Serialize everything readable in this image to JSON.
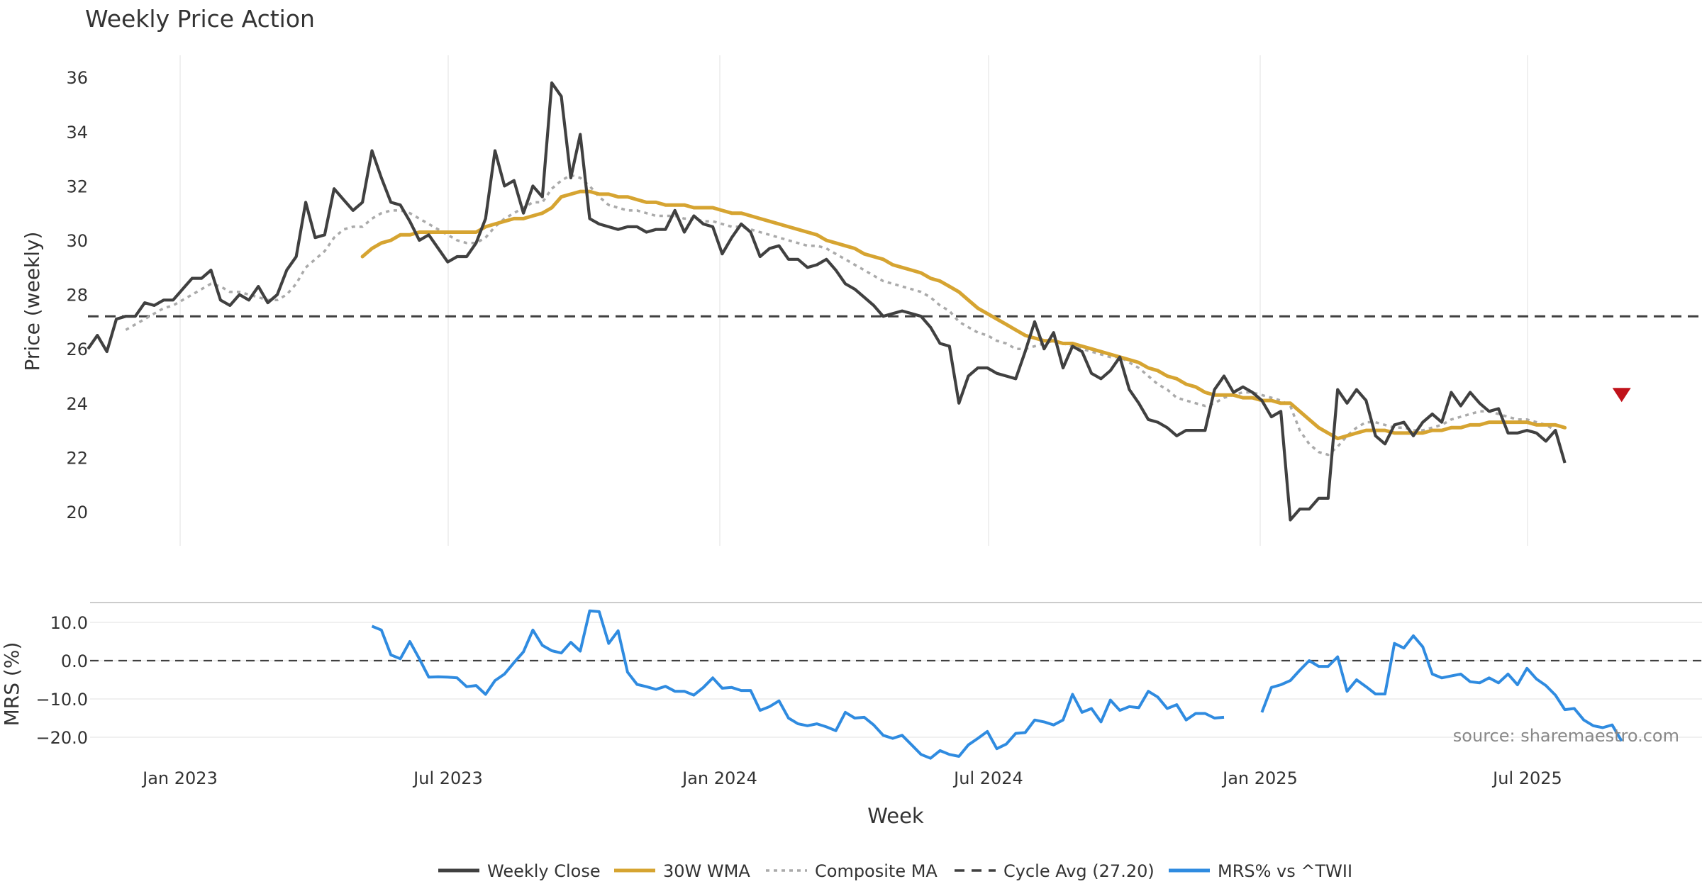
{
  "chart_data": [
    {
      "type": "line",
      "title": "Weekly Price Action",
      "xlabel": "Week",
      "ylabel": "Price (weekly)",
      "ylim": [
        18.8,
        36.8
      ],
      "yticks": [
        20,
        22,
        24,
        26,
        28,
        30,
        32,
        34,
        36
      ],
      "xticks": [
        "Jan 2023",
        "Jul 2023",
        "Jan 2024",
        "Jul 2024",
        "Jan 2025",
        "Jul 2025"
      ],
      "grid": true,
      "reference_line": {
        "label": "Cycle Avg (27.20)",
        "value": 27.2
      },
      "marker": {
        "type": "sell-signal",
        "x": 162,
        "y": 24.3
      },
      "series": [
        {
          "name": "Weekly Close",
          "color": "#404040",
          "values": [
            26.0,
            26.5,
            25.9,
            27.1,
            27.2,
            27.2,
            27.7,
            27.6,
            27.8,
            27.8,
            28.2,
            28.6,
            28.6,
            28.9,
            27.8,
            27.6,
            28.0,
            27.8,
            28.3,
            27.7,
            28.0,
            28.9,
            29.4,
            31.4,
            30.1,
            30.2,
            31.9,
            31.5,
            31.1,
            31.4,
            33.3,
            32.3,
            31.4,
            31.3,
            30.7,
            30.0,
            30.2,
            29.7,
            29.2,
            29.4,
            29.4,
            29.9,
            30.8,
            33.3,
            32.0,
            32.2,
            31.0,
            32.0,
            31.6,
            35.8,
            35.3,
            32.3,
            33.9,
            30.8,
            30.6,
            30.5,
            30.4,
            30.5,
            30.5,
            30.3,
            30.4,
            30.4,
            31.1,
            30.3,
            30.9,
            30.6,
            30.5,
            29.5,
            30.1,
            30.6,
            30.3,
            29.4,
            29.7,
            29.8,
            29.3,
            29.3,
            29.0,
            29.1,
            29.3,
            28.9,
            28.4,
            28.2,
            27.9,
            27.6,
            27.2,
            27.3,
            27.4,
            27.3,
            27.2,
            26.8,
            26.2,
            26.1,
            24.0,
            25.0,
            25.3,
            25.3,
            25.1,
            25.0,
            24.9,
            25.9,
            27.0,
            26.0,
            26.6,
            25.3,
            26.1,
            25.9,
            25.1,
            24.9,
            25.2,
            25.7,
            24.5,
            24.0,
            23.4,
            23.3,
            23.1,
            22.8,
            23.0,
            23.0,
            23.0,
            24.5,
            25.0,
            24.4,
            24.6,
            24.4,
            24.1,
            23.5,
            23.7,
            19.7,
            20.1,
            20.1,
            20.5,
            20.5,
            24.5,
            24.0,
            24.5,
            24.1,
            22.8,
            22.5,
            23.2,
            23.3,
            22.8,
            23.3,
            23.6,
            23.3,
            24.4,
            23.9,
            24.4,
            24.0,
            23.7,
            23.8,
            22.9,
            22.9,
            23.0,
            22.9,
            22.6,
            23.0,
            21.8
          ]
        },
        {
          "name": "30W WMA",
          "color": "#d6a431",
          "values": [
            null,
            null,
            null,
            null,
            null,
            null,
            null,
            null,
            null,
            null,
            null,
            null,
            null,
            null,
            null,
            null,
            null,
            null,
            null,
            null,
            null,
            null,
            null,
            null,
            null,
            null,
            null,
            null,
            null,
            29.4,
            29.7,
            29.9,
            30.0,
            30.2,
            30.2,
            30.3,
            30.3,
            30.3,
            30.3,
            30.3,
            30.3,
            30.3,
            30.5,
            30.6,
            30.7,
            30.8,
            30.8,
            30.9,
            31.0,
            31.2,
            31.6,
            31.7,
            31.8,
            31.8,
            31.7,
            31.7,
            31.6,
            31.6,
            31.5,
            31.4,
            31.4,
            31.3,
            31.3,
            31.3,
            31.2,
            31.2,
            31.2,
            31.1,
            31.0,
            31.0,
            30.9,
            30.8,
            30.7,
            30.6,
            30.5,
            30.4,
            30.3,
            30.2,
            30.0,
            29.9,
            29.8,
            29.7,
            29.5,
            29.4,
            29.3,
            29.1,
            29.0,
            28.9,
            28.8,
            28.6,
            28.5,
            28.3,
            28.1,
            27.8,
            27.5,
            27.3,
            27.1,
            26.9,
            26.7,
            26.5,
            26.4,
            26.3,
            26.3,
            26.2,
            26.2,
            26.1,
            26.0,
            25.9,
            25.8,
            25.7,
            25.6,
            25.5,
            25.3,
            25.2,
            25.0,
            24.9,
            24.7,
            24.6,
            24.4,
            24.3,
            24.3,
            24.3,
            24.2,
            24.2,
            24.1,
            24.1,
            24.0,
            24.0,
            23.7,
            23.4,
            23.1,
            22.9,
            22.7,
            22.8,
            22.9,
            23.0,
            23.0,
            23.0,
            22.9,
            22.9,
            22.9,
            22.9,
            23.0,
            23.0,
            23.1,
            23.1,
            23.2,
            23.2,
            23.3,
            23.3,
            23.3,
            23.3,
            23.3,
            23.2,
            23.2,
            23.2,
            23.1
          ]
        },
        {
          "name": "Composite MA",
          "color": "#aaaaaa",
          "values": [
            null,
            null,
            null,
            null,
            26.7,
            26.9,
            27.1,
            27.3,
            27.5,
            27.6,
            27.8,
            28.0,
            28.2,
            28.4,
            28.3,
            28.1,
            28.1,
            28.0,
            27.9,
            27.8,
            27.8,
            28.0,
            28.4,
            29.0,
            29.3,
            29.6,
            30.1,
            30.4,
            30.5,
            30.5,
            30.8,
            31.0,
            31.1,
            31.1,
            31.0,
            30.8,
            30.6,
            30.4,
            30.2,
            30.0,
            29.9,
            29.9,
            30.1,
            30.5,
            30.8,
            31.0,
            31.2,
            31.4,
            31.4,
            31.9,
            32.2,
            32.4,
            32.3,
            32.0,
            31.6,
            31.3,
            31.2,
            31.1,
            31.1,
            31.0,
            30.9,
            30.9,
            30.9,
            30.8,
            30.8,
            30.7,
            30.7,
            30.6,
            30.5,
            30.5,
            30.4,
            30.3,
            30.2,
            30.1,
            30.0,
            29.9,
            29.8,
            29.8,
            29.7,
            29.5,
            29.3,
            29.1,
            28.9,
            28.7,
            28.5,
            28.4,
            28.3,
            28.2,
            28.1,
            27.9,
            27.6,
            27.4,
            27.0,
            26.8,
            26.6,
            26.5,
            26.3,
            26.2,
            26.0,
            26.0,
            26.1,
            26.2,
            26.3,
            26.2,
            26.1,
            26.0,
            25.9,
            25.8,
            25.7,
            25.7,
            25.5,
            25.3,
            25.0,
            24.7,
            24.5,
            24.2,
            24.1,
            24.0,
            23.9,
            24.0,
            24.2,
            24.3,
            24.4,
            24.4,
            24.3,
            24.2,
            24.1,
            23.9,
            23.0,
            22.5,
            22.2,
            22.1,
            22.4,
            22.8,
            23.1,
            23.3,
            23.3,
            23.2,
            23.1,
            23.1,
            23.0,
            23.0,
            23.1,
            23.2,
            23.4,
            23.5,
            23.6,
            23.7,
            23.7,
            23.6,
            23.5,
            23.4,
            23.4,
            23.3,
            23.2,
            23.0
          ]
        }
      ]
    },
    {
      "type": "line",
      "ylabel": "MRS (%)",
      "ylim": [
        -25,
        15
      ],
      "yticks": [
        10.0,
        0.0,
        -10.0,
        -20.0
      ],
      "reference_line": {
        "value": 0.0
      },
      "series": [
        {
          "name": "MRS% vs ^TWII",
          "color": "#2f8be0",
          "values": [
            null,
            null,
            null,
            null,
            null,
            null,
            null,
            null,
            null,
            null,
            null,
            null,
            null,
            null,
            null,
            null,
            null,
            null,
            null,
            null,
            null,
            null,
            null,
            null,
            null,
            null,
            null,
            null,
            null,
            null,
            9.0,
            8.0,
            1.5,
            0.5,
            5.0,
            0.5,
            -4.3,
            -4.2,
            -4.3,
            -4.5,
            -6.8,
            -6.5,
            -8.8,
            -5.2,
            -3.5,
            -0.5,
            2.3,
            8.0,
            4.0,
            2.6,
            2.0,
            4.8,
            2.5,
            13.0,
            12.8,
            4.5,
            7.8,
            -3.0,
            -6.2,
            -6.8,
            -7.5,
            -6.7,
            -8.0,
            -8.0,
            -9.0,
            -7.0,
            -4.5,
            -7.2,
            -7.0,
            -7.8,
            -7.8,
            -13.0,
            -12.0,
            -10.5,
            -15.0,
            -16.5,
            -17.0,
            -16.5,
            -17.3,
            -18.3,
            -13.5,
            -15.0,
            -14.8,
            -16.8,
            -19.5,
            -20.3,
            -19.5,
            -22.0,
            -24.5,
            -25.5,
            -23.5,
            -24.5,
            -25.0,
            -22.0,
            -20.3,
            -18.5,
            -23.0,
            -21.8,
            -19.0,
            -18.8,
            -15.5,
            -16.0,
            -16.8,
            -15.5,
            -8.8,
            -13.5,
            -12.5,
            -16.0,
            -10.3,
            -13.0,
            -12.0,
            -12.3,
            -8.0,
            -9.5,
            -12.5,
            -11.5,
            -15.5,
            -13.8,
            -13.8,
            -15.0,
            -14.8,
            null,
            null,
            null,
            -13.5,
            -7.0,
            -6.3,
            -5.2,
            -2.5,
            0.0,
            -1.5,
            -1.5,
            1.0,
            -8.0,
            -5.0,
            -6.8,
            -8.7,
            -8.7,
            4.5,
            3.3,
            6.5,
            3.6,
            -3.5,
            -4.5,
            -4.0,
            -3.5,
            -5.5,
            -5.8,
            -4.5,
            -5.8,
            -3.5,
            -6.3,
            -2.0,
            -4.8,
            -6.5,
            -9.0,
            -12.8,
            -12.5,
            -15.5,
            -17.0,
            -17.5,
            -16.8,
            -21.0
          ]
        }
      ],
      "annotation": "source: sharemaestro.com"
    }
  ],
  "legend": [
    {
      "label": "Weekly Close",
      "style": "solid",
      "color": "#404040"
    },
    {
      "label": "30W WMA",
      "style": "solid",
      "color": "#d6a431"
    },
    {
      "label": "Composite MA",
      "style": "dotted",
      "color": "#aaaaaa"
    },
    {
      "label": "Cycle Avg (27.20)",
      "style": "dashed",
      "color": "#404040"
    },
    {
      "label": "MRS% vs ^TWII",
      "style": "solid",
      "color": "#2f8be0"
    }
  ]
}
